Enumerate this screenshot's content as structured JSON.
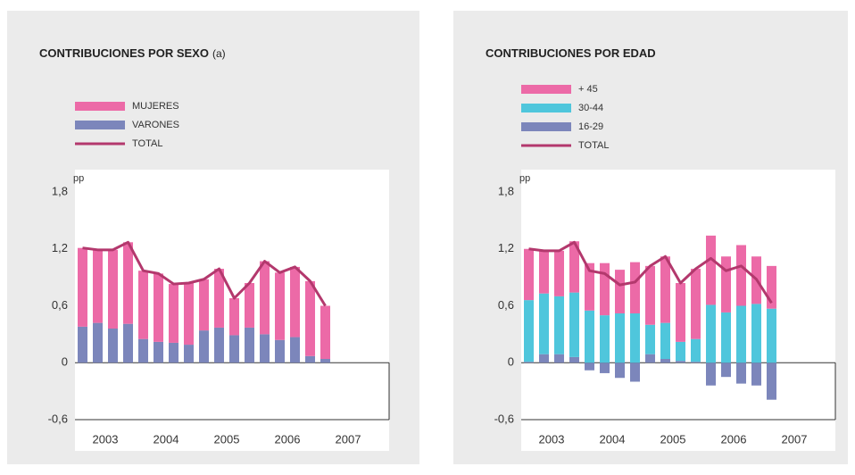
{
  "chart_data": [
    {
      "type": "bar",
      "stacked": true,
      "title": "CONTRIBUCIONES POR SEXO",
      "title_note": "(a)",
      "y_unit": "pp",
      "x_labels": [
        "2003",
        "2004",
        "2005",
        "2006",
        "2007"
      ],
      "ylim": [
        -0.6,
        1.8
      ],
      "yticks": [
        {
          "value": -0.6,
          "label": "-0,6"
        },
        0,
        {
          "value": 0.6,
          "label": "0,6"
        },
        {
          "value": 1.2,
          "label": "1,2"
        },
        {
          "value": 1.8,
          "label": "1,8"
        }
      ],
      "series": [
        {
          "name": "MUJERES",
          "type": "bar",
          "color": "#ec6aa7",
          "values": [
            0.83,
            0.77,
            0.83,
            0.86,
            0.72,
            0.72,
            0.62,
            0.65,
            0.54,
            0.62,
            0.39,
            0.47,
            0.77,
            0.71,
            0.74,
            0.79,
            0.56
          ]
        },
        {
          "name": "VARONES",
          "type": "bar",
          "color": "#7c86bb",
          "values": [
            0.38,
            0.42,
            0.36,
            0.41,
            0.25,
            0.22,
            0.21,
            0.19,
            0.34,
            0.37,
            0.29,
            0.37,
            0.3,
            0.24,
            0.27,
            0.07,
            0.04
          ]
        },
        {
          "name": "TOTAL",
          "type": "line",
          "color": "#b3386d",
          "values": [
            1.21,
            1.19,
            1.19,
            1.27,
            0.97,
            0.94,
            0.83,
            0.84,
            0.88,
            0.99,
            0.68,
            0.84,
            1.07,
            0.95,
            1.01,
            0.86,
            0.6
          ]
        }
      ]
    },
    {
      "type": "bar",
      "stacked": true,
      "title": "CONTRIBUCIONES POR EDAD",
      "y_unit": "pp",
      "x_labels": [
        "2003",
        "2004",
        "2005",
        "2006",
        "2007"
      ],
      "ylim": [
        -0.6,
        1.8
      ],
      "yticks": [
        {
          "value": -0.6,
          "label": "-0,6"
        },
        0,
        {
          "value": 0.6,
          "label": "0,6"
        },
        {
          "value": 1.2,
          "label": "1,2"
        },
        {
          "value": 1.8,
          "label": "1,8"
        }
      ],
      "series": [
        {
          "name": "+ 45",
          "type": "bar",
          "color": "#ec6aa7",
          "values": [
            0.54,
            0.46,
            0.48,
            0.54,
            0.5,
            0.55,
            0.46,
            0.54,
            0.62,
            0.7,
            0.62,
            0.74,
            0.73,
            0.59,
            0.64,
            0.5,
            0.45
          ]
        },
        {
          "name": "30-44",
          "type": "bar",
          "color": "#4fc6dc",
          "values": [
            0.65,
            0.64,
            0.61,
            0.68,
            0.55,
            0.5,
            0.52,
            0.52,
            0.31,
            0.38,
            0.2,
            0.24,
            0.61,
            0.53,
            0.6,
            0.62,
            0.57
          ]
        },
        {
          "name": "16-29",
          "type": "bar",
          "color": "#7c86bb",
          "values": [
            0.01,
            0.09,
            0.09,
            0.06,
            -0.08,
            -0.11,
            -0.16,
            -0.2,
            0.09,
            0.04,
            0.02,
            0.01,
            -0.24,
            -0.15,
            -0.22,
            -0.24,
            -0.39
          ]
        },
        {
          "name": "TOTAL",
          "type": "line",
          "color": "#b3386d",
          "values": [
            1.2,
            1.18,
            1.18,
            1.27,
            0.97,
            0.94,
            0.82,
            0.85,
            1.02,
            1.12,
            0.84,
            0.99,
            1.1,
            0.97,
            1.02,
            0.88,
            0.63
          ]
        }
      ]
    }
  ]
}
